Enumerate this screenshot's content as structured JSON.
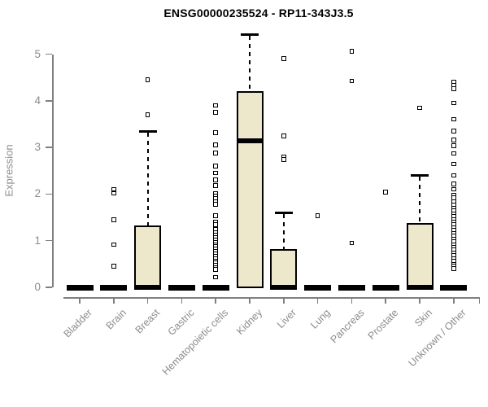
{
  "title": "ENSG00000235524 - RP11-343J3.5",
  "colors": {
    "box_fill": "#ede8cc",
    "box_stroke": "#000000",
    "axis": "#7f7f7f",
    "axis_text": "#8c8c8c",
    "title_text": "#000000",
    "background": "#ffffff"
  },
  "chart_data": {
    "type": "boxplot",
    "title": "ENSG00000235524 - RP11-343J3.5",
    "xlabel": "",
    "ylabel": "Expression",
    "ylim": [
      0,
      5.5
    ],
    "yticks": [
      0,
      1,
      2,
      3,
      4,
      5
    ],
    "grid": false,
    "legend": "none",
    "categories": [
      "Bladder",
      "Brain",
      "Breast",
      "Gastric",
      "Hematopoietic cells",
      "Kidney",
      "Liver",
      "Lung",
      "Pancreas",
      "Prostate",
      "Skin",
      "Unknown / Other"
    ],
    "boxes": [
      {
        "category": "Bladder",
        "whisker_low": 0,
        "q1": 0,
        "median": 0,
        "q3": 0,
        "whisker_high": 0,
        "outliers": []
      },
      {
        "category": "Brain",
        "whisker_low": 0,
        "q1": 0,
        "median": 0,
        "q3": 0,
        "whisker_high": 0,
        "outliers": [
          2.1,
          2.02,
          1.45,
          0.92,
          0.45
        ]
      },
      {
        "category": "Breast",
        "whisker_low": 0,
        "q1": 0,
        "median": 0,
        "q3": 1.33,
        "whisker_high": 3.35,
        "outliers": [
          4.45,
          3.7
        ]
      },
      {
        "category": "Gastric",
        "whisker_low": 0,
        "q1": 0,
        "median": 0,
        "q3": 0,
        "whisker_high": 0,
        "outliers": []
      },
      {
        "category": "Hematopoietic cells",
        "whisker_low": 0,
        "q1": 0,
        "median": 0,
        "q3": 0,
        "whisker_high": 0,
        "outliers": [
          3.9,
          3.75,
          3.32,
          3.05,
          2.88,
          2.6,
          2.45,
          2.3,
          2.18,
          2.02,
          1.96,
          1.9,
          1.84,
          1.78,
          1.54,
          1.4,
          1.34,
          1.24,
          1.18,
          1.12,
          1.07,
          1.02,
          0.97,
          0.92,
          0.87,
          0.82,
          0.77,
          0.72,
          0.67,
          0.62,
          0.57,
          0.52,
          0.47,
          0.42,
          0.38,
          0.22
        ]
      },
      {
        "category": "Kidney",
        "whisker_low": 0,
        "q1": 0,
        "median": 3.15,
        "q3": 4.2,
        "whisker_high": 5.42,
        "outliers": []
      },
      {
        "category": "Liver",
        "whisker_low": 0,
        "q1": 0,
        "median": 0,
        "q3": 0.82,
        "whisker_high": 1.6,
        "outliers": [
          4.9,
          3.25,
          2.8,
          2.74
        ]
      },
      {
        "category": "Lung",
        "whisker_low": 0,
        "q1": 0,
        "median": 0,
        "q3": 0,
        "whisker_high": 0,
        "outliers": [
          1.54
        ]
      },
      {
        "category": "Pancreas",
        "whisker_low": 0,
        "q1": 0,
        "median": 0,
        "q3": 0,
        "whisker_high": 0,
        "outliers": [
          5.06,
          4.42,
          0.95
        ]
      },
      {
        "category": "Prostate",
        "whisker_low": 0,
        "q1": 0,
        "median": 0,
        "q3": 0,
        "whisker_high": 0,
        "outliers": [
          2.04
        ]
      },
      {
        "category": "Skin",
        "whisker_low": 0,
        "q1": 0,
        "median": 0,
        "q3": 1.37,
        "whisker_high": 2.4,
        "outliers": [
          3.85
        ]
      },
      {
        "category": "Unknown / Other",
        "whisker_low": 0,
        "q1": 0,
        "median": 0,
        "q3": 0,
        "whisker_high": 0,
        "outliers": [
          4.4,
          4.33,
          4.26,
          3.95,
          3.6,
          3.35,
          3.16,
          3.04,
          2.87,
          2.64,
          2.4,
          2.22,
          2.1,
          1.98,
          1.92,
          1.84,
          1.76,
          1.7,
          1.64,
          1.58,
          1.52,
          1.46,
          1.4,
          1.34,
          1.28,
          1.22,
          1.16,
          1.1,
          1.04,
          0.98,
          0.92,
          0.86,
          0.8,
          0.74,
          0.68,
          0.62,
          0.56,
          0.5,
          0.45,
          0.4
        ]
      }
    ]
  }
}
